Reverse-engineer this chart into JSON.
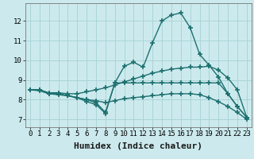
{
  "background_color": "#cceaed",
  "grid_color": "#aad4d8",
  "line_color": "#1e7070",
  "line_width": 1.0,
  "marker": "+",
  "marker_size": 4,
  "marker_edge_width": 1.2,
  "xlabel": "Humidex (Indice chaleur)",
  "ylabel_ticks": [
    7,
    8,
    9,
    10,
    11,
    12
  ],
  "xlim": [
    -0.5,
    23.5
  ],
  "ylim": [
    6.6,
    12.9
  ],
  "series": [
    {
      "x": [
        0,
        1,
        2,
        3,
        4,
        5,
        6,
        7,
        8,
        9,
        10,
        11,
        12,
        13,
        14,
        15,
        16,
        17,
        18,
        19,
        20,
        21,
        22,
        23
      ],
      "y": [
        8.5,
        8.5,
        8.3,
        8.25,
        8.2,
        8.1,
        8.0,
        7.85,
        7.35,
        8.85,
        9.7,
        9.9,
        9.65,
        10.9,
        12.0,
        12.3,
        12.4,
        11.65,
        10.3,
        9.75,
        9.15,
        8.3,
        7.65,
        7.1
      ]
    },
    {
      "x": [
        0,
        1,
        2,
        3,
        4,
        5,
        6,
        7,
        8,
        9,
        10,
        11,
        12,
        13,
        14,
        15,
        16,
        17,
        18,
        19,
        20,
        21,
        22,
        23
      ],
      "y": [
        8.5,
        8.5,
        8.35,
        8.35,
        8.3,
        8.3,
        8.4,
        8.5,
        8.6,
        8.75,
        8.9,
        9.05,
        9.2,
        9.35,
        9.45,
        9.55,
        9.6,
        9.65,
        9.65,
        9.7,
        9.5,
        9.1,
        8.5,
        7.1
      ]
    },
    {
      "x": [
        0,
        1,
        2,
        3,
        4,
        5,
        6,
        7,
        8,
        9,
        10,
        11,
        12,
        13,
        14,
        15,
        16,
        17,
        18,
        19,
        20,
        21,
        22,
        23
      ],
      "y": [
        8.5,
        8.5,
        8.3,
        8.3,
        8.2,
        8.1,
        8.0,
        7.95,
        7.85,
        7.95,
        8.05,
        8.1,
        8.15,
        8.2,
        8.25,
        8.3,
        8.3,
        8.3,
        8.25,
        8.1,
        7.9,
        7.65,
        7.35,
        7.0
      ]
    },
    {
      "x": [
        0,
        1,
        2,
        3,
        4,
        5,
        6,
        7,
        8,
        9,
        10,
        11,
        12,
        13,
        14,
        15,
        16,
        17,
        18,
        19,
        20,
        21,
        22,
        23
      ],
      "y": [
        8.5,
        8.45,
        8.3,
        8.3,
        8.2,
        8.1,
        7.9,
        7.75,
        7.3,
        8.85,
        8.85,
        8.85,
        8.85,
        8.85,
        8.85,
        8.85,
        8.85,
        8.85,
        8.85,
        8.85,
        8.85,
        8.3,
        7.65,
        7.1
      ]
    }
  ],
  "xtick_labels": [
    "0",
    "1",
    "2",
    "3",
    "4",
    "5",
    "6",
    "7",
    "8",
    "9",
    "10",
    "11",
    "12",
    "13",
    "14",
    "15",
    "16",
    "17",
    "18",
    "19",
    "20",
    "21",
    "22",
    "23"
  ],
  "tick_fontsize": 6.5,
  "label_fontsize": 8
}
